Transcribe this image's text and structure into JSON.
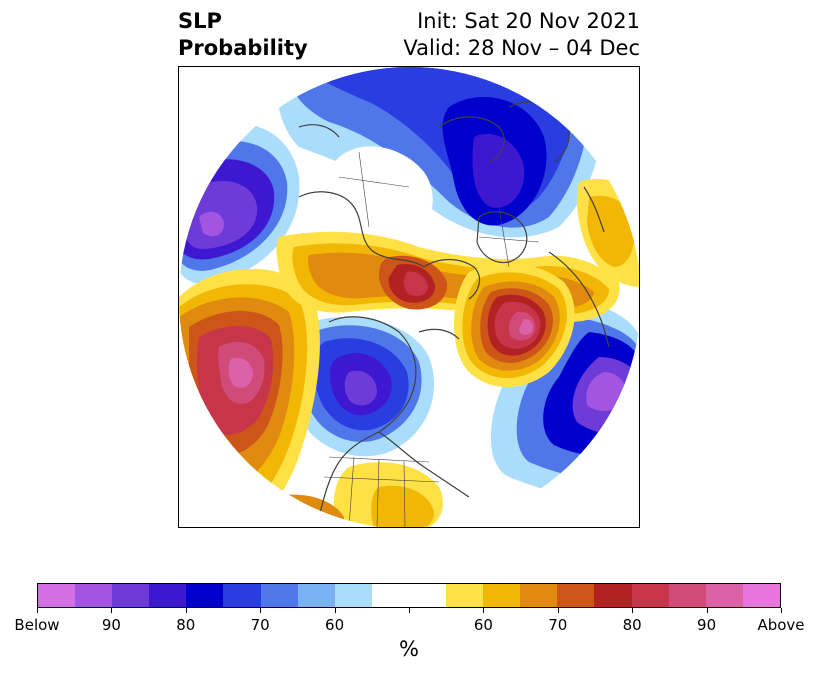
{
  "title": {
    "left_line1": "SLP",
    "left_line2": "Probability",
    "right_line1": "Init: Sat 20 Nov 2021",
    "right_line2": "Valid: 28 Nov – 04 Dec"
  },
  "colorbar": {
    "colors": [
      "#d46ee6",
      "#a155e0",
      "#6e3bd9",
      "#3e17d0",
      "#0000cc",
      "#2a3de0",
      "#4f77ea",
      "#78b2f2",
      "#aadcfb",
      "#ffffff",
      "#ffffff",
      "#ffe146",
      "#f2b705",
      "#e08a10",
      "#cd5517",
      "#b32223",
      "#c63549",
      "#d04b78",
      "#dc62a8",
      "#e676de"
    ],
    "labels": [
      "Below",
      "90",
      "80",
      "70",
      "60",
      "",
      "60",
      "70",
      "80",
      "90",
      "Above"
    ],
    "units": "%"
  },
  "palette": {
    "below_high": "#a155e0",
    "below_mid": "#3e17d0",
    "below_low": "#4f77ea",
    "below_faint": "#aadcfb",
    "above_faint": "#ffe146",
    "above_low": "#e08a10",
    "above_mid": "#b32223",
    "above_high": "#d04b78",
    "coast": "#404040"
  }
}
